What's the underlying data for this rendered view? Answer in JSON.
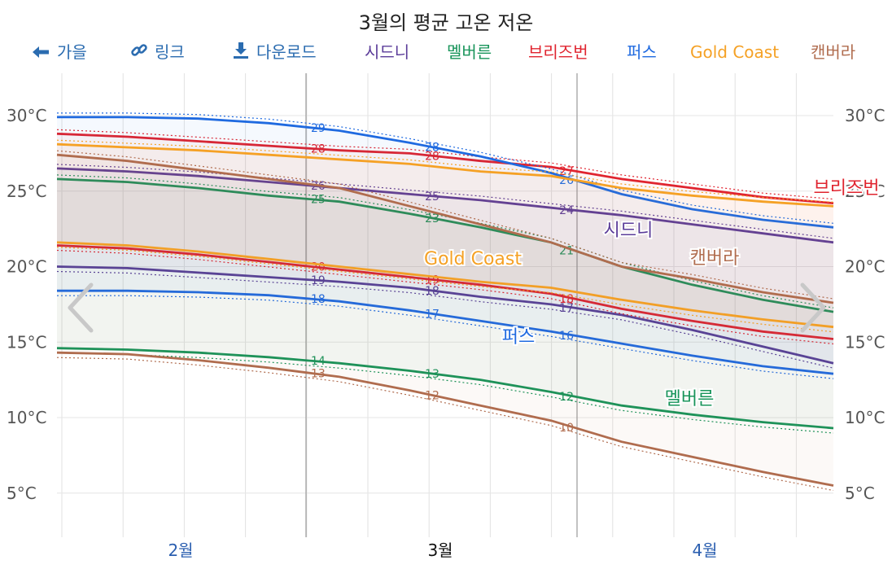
{
  "title": "3월의 평균 고온 저온",
  "toolbar": {
    "prev_label": "가을",
    "link_label": "링크",
    "download_label": "다운로드",
    "legend": [
      {
        "label": "시드니",
        "color": "#5b3c99"
      },
      {
        "label": "멜버른",
        "color": "#18945a"
      },
      {
        "label": "브리즈번",
        "color": "#e0242f"
      },
      {
        "label": "퍼스",
        "color": "#1f6ae0"
      },
      {
        "label": "Gold Coast",
        "color": "#f5a125"
      },
      {
        "label": "캔버라",
        "color": "#b06c4e"
      }
    ]
  },
  "chart_data": {
    "type": "line",
    "title": "3월의 평균 고온 저온",
    "ylim": [
      2,
      33
    ],
    "yticks": [
      "5°C",
      "10°C",
      "15°C",
      "20°C",
      "25°C",
      "30°C"
    ],
    "months": [
      "2월",
      "3월",
      "4월"
    ],
    "active_month": "3월",
    "x_range_days": [
      "2월 1일",
      "4월 30일"
    ],
    "grid": true,
    "series": [
      {
        "name": "시드니",
        "color": "#5b3c99",
        "high": [
          26.5,
          26.3,
          26.0,
          25.6,
          25.2,
          24.8,
          24.4,
          23.9,
          23.4,
          22.8,
          22.2,
          21.6
        ],
        "low": [
          20.0,
          19.9,
          19.6,
          19.3,
          19.0,
          18.6,
          18.0,
          17.5,
          16.8,
          15.8,
          14.7,
          13.6
        ],
        "mar_labels": {
          "start_high": "26",
          "mid_high": "25",
          "end_high": "24",
          "start_low": "19",
          "mid_low": "18",
          "end_low": "17"
        }
      },
      {
        "name": "멜버른",
        "color": "#18945a",
        "high": [
          25.8,
          25.6,
          25.2,
          24.7,
          24.3,
          23.5,
          22.6,
          21.6,
          20.0,
          18.8,
          17.8,
          17.0
        ],
        "low": [
          14.6,
          14.5,
          14.3,
          14.0,
          13.6,
          13.1,
          12.5,
          11.7,
          10.8,
          10.2,
          9.7,
          9.3
        ],
        "mar_labels": {
          "start_high": "25",
          "mid_high": "23",
          "end_high": "21",
          "start_low": "14",
          "mid_low": "13",
          "end_low": "12"
        }
      },
      {
        "name": "브리즈번",
        "color": "#e0242f",
        "high": [
          28.8,
          28.6,
          28.3,
          28.0,
          27.7,
          27.5,
          27.0,
          26.6,
          25.8,
          25.2,
          24.6,
          24.2
        ],
        "low": [
          21.4,
          21.2,
          20.8,
          20.3,
          19.8,
          19.3,
          18.8,
          18.2,
          17.2,
          16.4,
          15.7,
          15.2
        ],
        "mar_labels": {
          "start_high": "28",
          "mid_high": "28",
          "end_high": "27",
          "start_low": "20",
          "mid_low": "19",
          "end_low": "18"
        }
      },
      {
        "name": "퍼스",
        "color": "#1f6ae0",
        "high": [
          29.9,
          29.9,
          29.8,
          29.5,
          29.0,
          28.2,
          27.3,
          26.2,
          24.8,
          23.8,
          23.1,
          22.6
        ],
        "low": [
          18.4,
          18.4,
          18.3,
          18.1,
          17.7,
          17.1,
          16.4,
          15.7,
          14.9,
          14.1,
          13.4,
          12.9
        ],
        "mar_labels": {
          "start_high": "29",
          "mid_high": "28",
          "end_high": "26",
          "start_low": "18",
          "mid_low": "17",
          "end_low": "16"
        }
      },
      {
        "name": "Gold Coast",
        "color": "#f5a125",
        "high": [
          28.1,
          27.9,
          27.7,
          27.4,
          27.1,
          26.8,
          26.3,
          26.0,
          25.2,
          24.7,
          24.3,
          24.0
        ],
        "low": [
          21.6,
          21.4,
          21.0,
          20.5,
          20.0,
          19.5,
          19.0,
          18.6,
          17.8,
          17.1,
          16.5,
          16.0
        ],
        "mar_labels": {}
      },
      {
        "name": "캔버라",
        "color": "#b06c4e",
        "high": [
          27.4,
          27.0,
          26.4,
          25.8,
          25.2,
          24.0,
          22.8,
          21.6,
          20.0,
          19.2,
          18.3,
          17.6
        ],
        "low": [
          14.3,
          14.2,
          13.8,
          13.3,
          12.7,
          11.8,
          10.8,
          9.8,
          8.4,
          7.4,
          6.4,
          5.5
        ],
        "mar_labels": {
          "start_high": "",
          "mid_high": "",
          "end_high": "",
          "start_low": "13",
          "mid_low": "12",
          "end_low": "10"
        }
      }
    ]
  }
}
